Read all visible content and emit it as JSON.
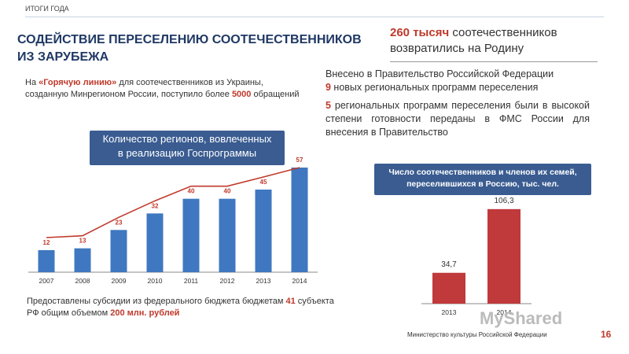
{
  "header": {
    "section": "ИТОГИ ГОДА",
    "title_line1": "СОДЕЙСТВИЕ ПЕРЕСЕЛЕНИЮ СООТЕЧЕСТВЕННИКОВ",
    "title_line2": "ИЗ ЗАРУБЕЖА"
  },
  "stat": {
    "number": "260 тысяч",
    "text_a": " соотечественников",
    "text_b": "возвратились на Родину"
  },
  "hotline": {
    "pre": "На ",
    "highlight": "«Горячую линию»",
    "mid": " для соотечественников из Украины, созданную Минрегионом России, поступило более ",
    "count": "5000",
    "post": " обращений"
  },
  "right_text": {
    "p1_intro": "Внесено в Правительство Российской Федерации",
    "p1_num": "9",
    "p1_rest": " новых региональных программ переселения",
    "p2_num": "5",
    "p2_rest": " региональных программ переселения были в высокой степени готовности переданы в ФМС России для внесения в Правительство"
  },
  "subsidy": {
    "pre": "Предоставлены субсидии из федерального бюджета бюджетам ",
    "num": "41",
    "mid": " субъекта РФ общим объемом ",
    "amount": "200 млн. рублей"
  },
  "footer": {
    "ministry": "Министерство культуры Российской Федерации",
    "page": "16",
    "watermark": "MyShared"
  },
  "colors": {
    "bar_blue": "#3f78c0",
    "bar_red": "#c0393b",
    "trend": "#c0392b",
    "box": "#3a5c91"
  },
  "chart_data": [
    {
      "type": "bar",
      "title": "Количество регионов, вовлеченных в реализацию Госпрограммы",
      "title_line1": "Количество регионов, вовлеченных",
      "title_line2": "в реализацию Госпрограммы",
      "categories": [
        "2007",
        "2008",
        "2009",
        "2010",
        "2011",
        "2012",
        "2013",
        "2014"
      ],
      "values": [
        12,
        13,
        23,
        32,
        40,
        40,
        45,
        57
      ],
      "data_labels": [
        "12",
        "13",
        "23",
        "32",
        "40",
        "40",
        "45",
        "57"
      ],
      "trend_line": true,
      "ylim": [
        0,
        60
      ],
      "grid": false
    },
    {
      "type": "bar",
      "title": "Число соотечественников и членов их семей, переселившихся в Россию, тыс. чел.",
      "title_line1": "Число соотечественников и членов их семей,",
      "title_line2": "переселившихся в Россию, тыс. чел.",
      "categories": [
        "2013",
        "2014"
      ],
      "values": [
        34.7,
        106.3
      ],
      "data_labels": [
        "34,7",
        "106,3"
      ],
      "ylim": [
        0,
        115
      ],
      "grid": false
    }
  ]
}
